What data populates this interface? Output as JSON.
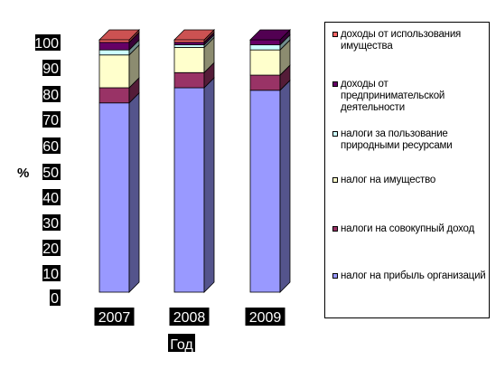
{
  "chart_data": {
    "type": "bar",
    "stacked": true,
    "three_d": true,
    "categories": [
      "2007",
      "2008",
      "2009"
    ],
    "xlabel": "Год",
    "ylabel": "%",
    "ylim": [
      0,
      100
    ],
    "yticks": [
      "0",
      "10",
      "20",
      "30",
      "40",
      "50",
      "60",
      "70",
      "80",
      "90",
      "100"
    ],
    "grid": false,
    "legend_position": "right",
    "series": [
      {
        "name": "налог на прибыль организаций",
        "color": "#9999ff",
        "values": [
          75,
          81,
          80
        ]
      },
      {
        "name": "налоги на совокупный доход",
        "color": "#993366",
        "values": [
          6,
          6,
          6
        ]
      },
      {
        "name": "налог на имущество",
        "color": "#ffffcc",
        "values": [
          13,
          10,
          10
        ]
      },
      {
        "name": "налоги за пользование природными ресурсами",
        "color": "#ccffff",
        "values": [
          2,
          1,
          2
        ]
      },
      {
        "name": "доходы от предпринимательской деятельности",
        "color": "#660066",
        "values": [
          3,
          1,
          2
        ]
      },
      {
        "name": "доходы от использования имущества",
        "color": "#ff6666",
        "values": [
          1,
          1,
          0
        ]
      }
    ]
  }
}
